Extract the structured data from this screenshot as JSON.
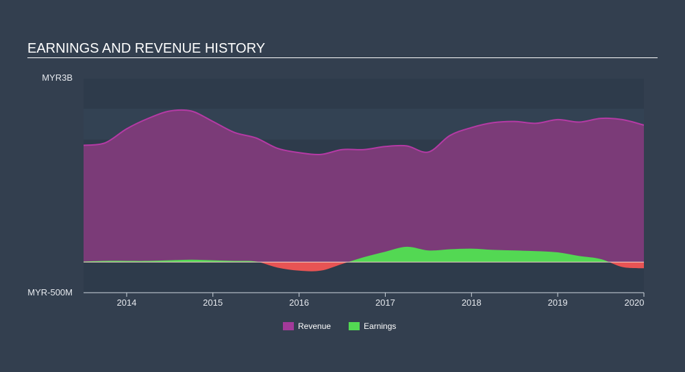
{
  "header": {
    "title": "EARNINGS AND REVENUE HISTORY"
  },
  "colors": {
    "background": "#333f4f",
    "revenue": "#7b3b78",
    "revenue_line": "#b53aa5",
    "earnings_pos": "#53d853",
    "earnings_neg": "#e85454",
    "axis": "#d0d8e0"
  },
  "legend": {
    "items": [
      {
        "label": "Revenue",
        "color": "#a33a9a"
      },
      {
        "label": "Earnings",
        "color": "#53d853"
      }
    ]
  },
  "chart_data": {
    "type": "area",
    "title": "EARNINGS AND REVENUE HISTORY",
    "xlabel": "",
    "ylabel": "",
    "y_tick_labels": [
      "MYR3B",
      "MYR-500M"
    ],
    "ylim": [
      -0.5,
      3.0
    ],
    "y_unit": "MYR billions",
    "x_tick_labels": [
      "2014",
      "2015",
      "2016",
      "2017",
      "2018",
      "2019",
      "2020"
    ],
    "xlim": [
      2013.5,
      2020.0
    ],
    "legend_position": "bottom",
    "grid": "horizontal bands",
    "x": [
      2013.5,
      2013.75,
      2014.0,
      2014.25,
      2014.5,
      2014.75,
      2015.0,
      2015.25,
      2015.5,
      2015.75,
      2016.0,
      2016.25,
      2016.5,
      2016.75,
      2017.0,
      2017.25,
      2017.5,
      2017.75,
      2018.0,
      2018.25,
      2018.5,
      2018.75,
      2019.0,
      2019.25,
      2019.5,
      2019.75,
      2020.0
    ],
    "series": [
      {
        "name": "Revenue",
        "values": [
          1.91,
          1.95,
          2.18,
          2.35,
          2.47,
          2.47,
          2.3,
          2.12,
          2.03,
          1.86,
          1.79,
          1.76,
          1.84,
          1.84,
          1.89,
          1.9,
          1.8,
          2.07,
          2.2,
          2.28,
          2.3,
          2.27,
          2.33,
          2.29,
          2.35,
          2.33,
          2.24
        ]
      },
      {
        "name": "Earnings",
        "values": [
          0.01,
          0.02,
          0.02,
          0.02,
          0.03,
          0.04,
          0.03,
          0.02,
          0.01,
          -0.09,
          -0.14,
          -0.14,
          -0.03,
          0.08,
          0.17,
          0.25,
          0.19,
          0.21,
          0.22,
          0.2,
          0.19,
          0.18,
          0.16,
          0.1,
          0.05,
          -0.08,
          -0.1
        ]
      }
    ]
  }
}
